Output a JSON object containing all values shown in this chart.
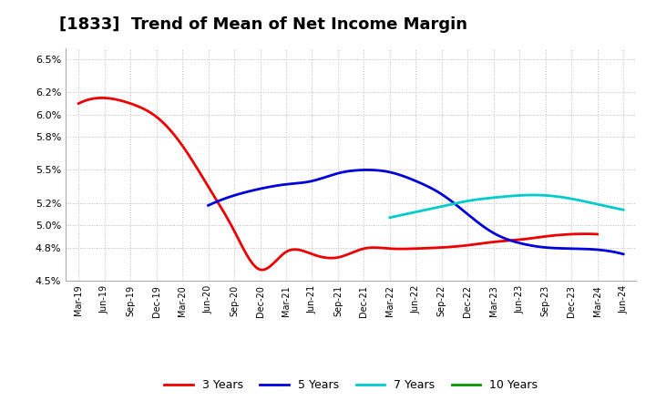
{
  "title": "[1833]  Trend of Mean of Net Income Margin",
  "background_color": "#ffffff",
  "plot_bg_color": "#ffffff",
  "grid_color": "#bbbbbb",
  "title_fontsize": 13,
  "legend_labels": [
    "3 Years",
    "5 Years",
    "7 Years",
    "10 Years"
  ],
  "line_colors": [
    "#ee0000",
    "#0000dd",
    "#00cccc",
    "#009900"
  ],
  "x_labels": [
    "Mar-19",
    "Jun-19",
    "Sep-19",
    "Dec-19",
    "Mar-20",
    "Jun-20",
    "Sep-20",
    "Dec-20",
    "Mar-21",
    "Jun-21",
    "Sep-21",
    "Dec-21",
    "Mar-22",
    "Jun-22",
    "Sep-22",
    "Dec-22",
    "Mar-23",
    "Jun-23",
    "Sep-23",
    "Dec-23",
    "Mar-24",
    "Jun-24"
  ],
  "ytick_vals": [
    0.045,
    0.048,
    0.05,
    0.052,
    0.055,
    0.058,
    0.06,
    0.062,
    0.065
  ],
  "ytick_labels": [
    "4.5%",
    "4.8%",
    "5.0%",
    "5.2%",
    "5.5%",
    "5.8%",
    "6.0%",
    "6.2%",
    "6.5%"
  ],
  "ylim": [
    0.045,
    0.066
  ],
  "series_3y_x": [
    0,
    1,
    2,
    3,
    4,
    5,
    6,
    7,
    8,
    9,
    10,
    11,
    12,
    13,
    14,
    15,
    16,
    17,
    18,
    19,
    20
  ],
  "series_3y_y": [
    0.061,
    0.0615,
    0.061,
    0.0598,
    0.0572,
    0.0535,
    0.0495,
    0.046,
    0.0476,
    0.0474,
    0.0471,
    0.0479,
    0.0479,
    0.0479,
    0.048,
    0.0482,
    0.0485,
    0.0487,
    0.049,
    0.0492,
    0.0492
  ],
  "series_5y_x": [
    5,
    6,
    7,
    8,
    9,
    10,
    11,
    12,
    13,
    14,
    15,
    16,
    17,
    18,
    19,
    20,
    21
  ],
  "series_5y_y": [
    0.0518,
    0.0527,
    0.0533,
    0.0537,
    0.054,
    0.0547,
    0.055,
    0.0548,
    0.054,
    0.0528,
    0.051,
    0.0493,
    0.0484,
    0.048,
    0.0479,
    0.0478,
    0.0474
  ],
  "series_7y_x": [
    12,
    13,
    14,
    15,
    16,
    17,
    18,
    19,
    20,
    21
  ],
  "series_7y_y": [
    0.0507,
    0.0512,
    0.0517,
    0.0522,
    0.0525,
    0.0527,
    0.0527,
    0.0524,
    0.0519,
    0.0514
  ],
  "series_10y_x": [],
  "series_10y_y": [],
  "line_width": 2.0
}
